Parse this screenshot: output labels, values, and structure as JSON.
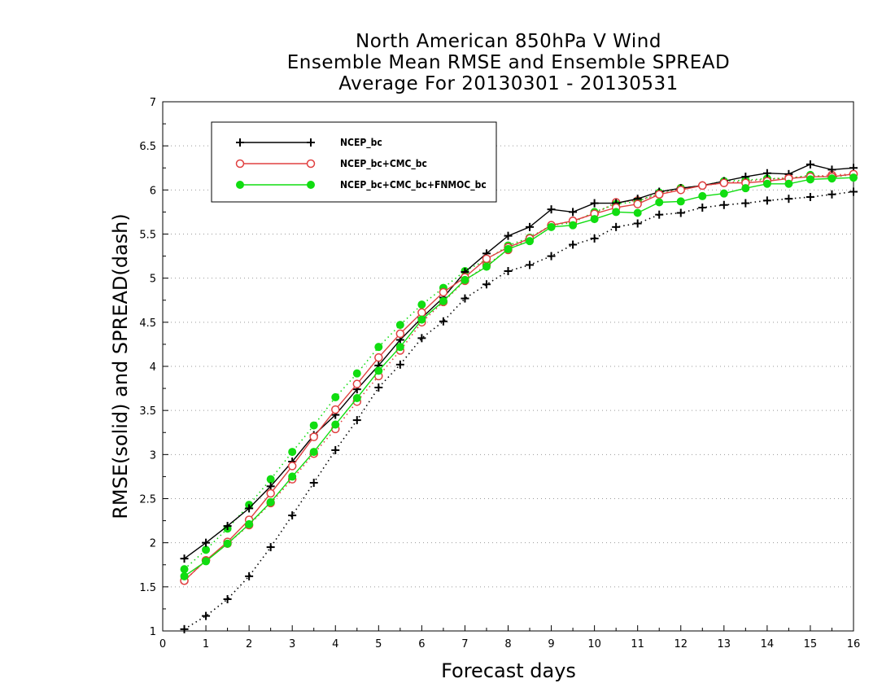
{
  "title_lines": [
    "North American 850hPa V Wind",
    "Ensemble Mean RMSE and Ensemble SPREAD",
    "Average For 20130301 - 20130531"
  ],
  "chart_data": {
    "type": "line",
    "title": "North American 850hPa V Wind Ensemble Mean RMSE and Ensemble SPREAD Average For 20130301 - 20130531",
    "xlabel": "Forecast days",
    "ylabel": "RMSE(solid) and SPREAD(dash)",
    "xlim": [
      0,
      16
    ],
    "ylim": [
      1,
      7
    ],
    "x_ticks": [
      "0",
      "1",
      "2",
      "3",
      "4",
      "5",
      "6",
      "7",
      "8",
      "9",
      "10",
      "11",
      "12",
      "13",
      "14",
      "15",
      "16"
    ],
    "y_ticks": [
      "1",
      "1.5",
      "2",
      "2.5",
      "3",
      "3.5",
      "4",
      "4.5",
      "5",
      "5.5",
      "6",
      "6.5",
      "7"
    ],
    "grid": "horizontal-dotted",
    "legend_placement": "top-left",
    "x": [
      0.5,
      1,
      1.5,
      2,
      2.5,
      3,
      3.5,
      4,
      4.5,
      5,
      5.5,
      6,
      6.5,
      7,
      7.5,
      8,
      8.5,
      9,
      9.5,
      10,
      10.5,
      11,
      11.5,
      12,
      12.5,
      13,
      13.5,
      14,
      14.5,
      15,
      15.5,
      16
    ],
    "series": [
      {
        "name": "NCEP_bc",
        "color": "#000000",
        "marker": "plus",
        "rmse": [
          1.82,
          2.0,
          2.19,
          2.39,
          2.64,
          2.92,
          3.22,
          3.45,
          3.74,
          4.01,
          4.3,
          4.55,
          4.78,
          5.07,
          5.28,
          5.48,
          5.58,
          5.78,
          5.75,
          5.85,
          5.85,
          5.9,
          5.98,
          6.02,
          6.05,
          6.1,
          6.15,
          6.19,
          6.18,
          6.29,
          6.23,
          6.25
        ],
        "spread": [
          1.02,
          1.17,
          1.36,
          1.62,
          1.95,
          2.31,
          2.68,
          3.05,
          3.39,
          3.76,
          4.02,
          4.32,
          4.51,
          4.77,
          4.93,
          5.08,
          5.15,
          5.25,
          5.38,
          5.45,
          5.58,
          5.62,
          5.72,
          5.74,
          5.8,
          5.83,
          5.85,
          5.88,
          5.9,
          5.92,
          5.95,
          5.98
        ]
      },
      {
        "name": "NCEP_bc+CMC_bc",
        "color": "#e04040",
        "marker": "open-circle",
        "rmse": [
          1.57,
          1.8,
          2.01,
          2.26,
          2.56,
          2.87,
          3.2,
          3.51,
          3.8,
          4.1,
          4.37,
          4.61,
          4.84,
          5.01,
          5.22,
          5.35,
          5.45,
          5.6,
          5.65,
          5.73,
          5.8,
          5.84,
          5.95,
          6.0,
          6.05,
          6.08,
          6.08,
          6.1,
          6.13,
          6.15,
          6.15,
          6.18
        ],
        "spread": [
          1.57,
          1.8,
          1.99,
          2.2,
          2.45,
          2.72,
          3.01,
          3.29,
          3.6,
          3.89,
          4.18,
          4.5,
          4.73,
          4.97,
          5.15,
          5.32,
          5.45,
          5.6,
          5.65,
          5.73,
          5.86,
          5.88,
          5.95,
          6.02,
          6.05,
          6.08,
          6.1,
          6.12,
          6.14,
          6.15,
          6.17,
          6.18
        ]
      },
      {
        "name": "NCEP_bc+CMC_bc+FNMOC_bc",
        "color": "#11dd11",
        "marker": "filled-circle",
        "rmse": [
          1.62,
          1.79,
          1.99,
          2.21,
          2.46,
          2.75,
          3.03,
          3.34,
          3.64,
          3.95,
          4.22,
          4.53,
          4.74,
          4.98,
          5.13,
          5.33,
          5.42,
          5.58,
          5.6,
          5.67,
          5.75,
          5.74,
          5.86,
          5.87,
          5.93,
          5.96,
          6.02,
          6.07,
          6.07,
          6.12,
          6.13,
          6.14
        ],
        "spread": [
          1.7,
          1.92,
          2.16,
          2.43,
          2.72,
          3.03,
          3.33,
          3.65,
          3.92,
          4.22,
          4.47,
          4.7,
          4.89,
          5.08,
          5.21,
          5.37,
          5.46,
          5.6,
          5.63,
          5.75,
          5.84,
          5.87,
          5.97,
          6.02,
          6.05,
          6.1,
          6.11,
          6.13,
          6.13,
          6.17,
          6.14,
          6.18
        ]
      }
    ]
  }
}
